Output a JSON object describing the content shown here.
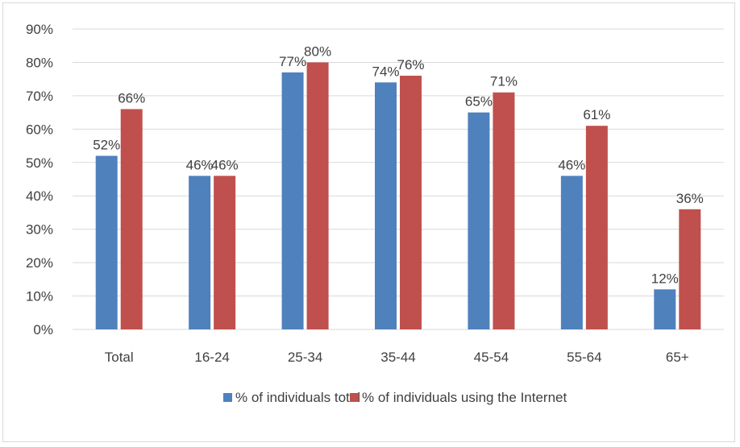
{
  "chart_data": {
    "type": "bar",
    "categories": [
      "Total",
      "16-24",
      "25-34",
      "35-44",
      "45-54",
      "55-64",
      "65+"
    ],
    "series": [
      {
        "name": "% of individuals total",
        "values": [
          52,
          46,
          77,
          74,
          65,
          46,
          12
        ],
        "color": "#4f81bd"
      },
      {
        "name": "% of individuals using the Internet",
        "values": [
          66,
          46,
          80,
          76,
          71,
          61,
          36
        ],
        "color": "#c0504d"
      }
    ],
    "y_ticks": [
      "0%",
      "10%",
      "20%",
      "30%",
      "40%",
      "50%",
      "60%",
      "70%",
      "80%",
      "90%"
    ],
    "ylim": [
      0,
      90
    ],
    "value_suffix": "%",
    "grid": true,
    "gridline_color": "#d9d9d9",
    "legend_position": "bottom",
    "title": "",
    "xlabel": "",
    "ylabel": ""
  }
}
